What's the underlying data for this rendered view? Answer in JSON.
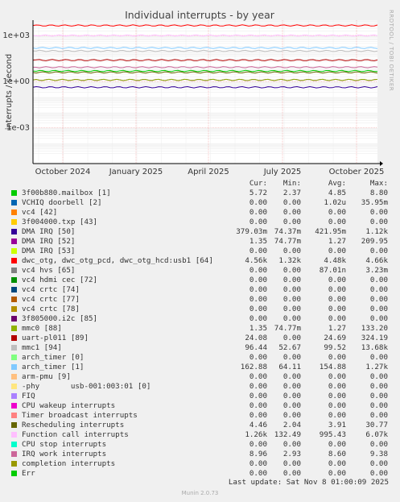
{
  "chart_data": {
    "type": "line",
    "title": "Individual interrupts - by year",
    "ylabel": "interrupts / second",
    "side_text": "RRDTOOL / TOBI OETIKER",
    "yscale": "log",
    "y_ticks": [
      "1e+03",
      "1e+00",
      "1e-03"
    ],
    "x_ticks": [
      "October 2024",
      "January 2025",
      "April 2025",
      "July 2025",
      "October 2025"
    ],
    "columns": [
      "Cur:",
      "Min:",
      "Avg:",
      "Max:"
    ],
    "series": [
      {
        "name": "3f00b880.mailbox [1]",
        "color": "#00cc00",
        "cur": "5.72",
        "min": "2.37",
        "avg": "4.85",
        "max": "8.80"
      },
      {
        "name": "VCHIQ doorbell [2]",
        "color": "#0066b3",
        "cur": "0.00",
        "min": "0.00",
        "avg": "1.02u",
        "max": "35.95m"
      },
      {
        "name": "vc4 [42]",
        "color": "#ff8000",
        "cur": "0.00",
        "min": "0.00",
        "avg": "0.00",
        "max": "0.00"
      },
      {
        "name": "3f004000.txp [43]",
        "color": "#ffcc00",
        "cur": "0.00",
        "min": "0.00",
        "avg": "0.00",
        "max": "0.00"
      },
      {
        "name": "DMA IRQ [50]",
        "color": "#330099",
        "cur": "379.03m",
        "min": "74.37m",
        "avg": "421.95m",
        "max": "1.12k"
      },
      {
        "name": "DMA IRQ [52]",
        "color": "#990099",
        "cur": "1.35",
        "min": "74.77m",
        "avg": "1.27",
        "max": "209.95"
      },
      {
        "name": "DMA IRQ [53]",
        "color": "#ccff00",
        "cur": "0.00",
        "min": "0.00",
        "avg": "0.00",
        "max": "0.00"
      },
      {
        "name": "dwc_otg, dwc_otg_pcd, dwc_otg_hcd:usb1 [64]",
        "color": "#ff0000",
        "cur": "4.56k",
        "min": "1.32k",
        "avg": "4.48k",
        "max": "4.66k"
      },
      {
        "name": "vc4 hvs [65]",
        "color": "#808080",
        "cur": "0.00",
        "min": "0.00",
        "avg": "87.01n",
        "max": "3.23m"
      },
      {
        "name": "vc4 hdmi cec [72]",
        "color": "#008f00",
        "cur": "0.00",
        "min": "0.00",
        "avg": "0.00",
        "max": "0.00"
      },
      {
        "name": "vc4 crtc [74]",
        "color": "#00487d",
        "cur": "0.00",
        "min": "0.00",
        "avg": "0.00",
        "max": "0.00"
      },
      {
        "name": "vc4 crtc [77]",
        "color": "#b35a00",
        "cur": "0.00",
        "min": "0.00",
        "avg": "0.00",
        "max": "0.00"
      },
      {
        "name": "vc4 crtc [78]",
        "color": "#b38f00",
        "cur": "0.00",
        "min": "0.00",
        "avg": "0.00",
        "max": "0.00"
      },
      {
        "name": "3f805000.i2c [85]",
        "color": "#6b006b",
        "cur": "0.00",
        "min": "0.00",
        "avg": "0.00",
        "max": "0.00"
      },
      {
        "name": "mmc0 [88]",
        "color": "#8fb300",
        "cur": "1.35",
        "min": "74.77m",
        "avg": "1.27",
        "max": "133.20"
      },
      {
        "name": "uart-pl011 [89]",
        "color": "#b30000",
        "cur": "24.08",
        "min": "0.00",
        "avg": "24.69",
        "max": "324.19"
      },
      {
        "name": "mmc1 [94]",
        "color": "#bebebe",
        "cur": "96.44",
        "min": "52.67",
        "avg": "99.52",
        "max": "13.68k"
      },
      {
        "name": "arch_timer [0]",
        "color": "#80ff80",
        "cur": "0.00",
        "min": "0.00",
        "avg": "0.00",
        "max": "0.00"
      },
      {
        "name": "arch_timer [1]",
        "color": "#80c9ff",
        "cur": "162.88",
        "min": "64.11",
        "avg": "154.88",
        "max": "1.27k"
      },
      {
        "name": "arm-pmu [9]",
        "color": "#ffc080",
        "cur": "0.00",
        "min": "0.00",
        "avg": "0.00",
        "max": "0.00"
      },
      {
        "name": "-phy       usb-001:003:01 [0]",
        "color": "#ffe680",
        "cur": "0.00",
        "min": "0.00",
        "avg": "0.00",
        "max": "0.00"
      },
      {
        "name": "FIQ",
        "color": "#aa80ff",
        "cur": "0.00",
        "min": "0.00",
        "avg": "0.00",
        "max": "0.00"
      },
      {
        "name": "CPU wakeup interrupts",
        "color": "#ee00cc",
        "cur": "0.00",
        "min": "0.00",
        "avg": "0.00",
        "max": "0.00"
      },
      {
        "name": "Timer broadcast interrupts",
        "color": "#ff8080",
        "cur": "0.00",
        "min": "0.00",
        "avg": "0.00",
        "max": "0.00"
      },
      {
        "name": "Rescheduling interrupts",
        "color": "#666600",
        "cur": "4.46",
        "min": "2.04",
        "avg": "3.91",
        "max": "30.77"
      },
      {
        "name": "Function call interrupts",
        "color": "#ffbfff",
        "cur": "1.26k",
        "min": "132.49",
        "avg": "995.43",
        "max": "6.07k"
      },
      {
        "name": "CPU stop interrupts",
        "color": "#00ffcc",
        "cur": "0.00",
        "min": "0.00",
        "avg": "0.00",
        "max": "0.00"
      },
      {
        "name": "IRQ work interrupts",
        "color": "#cc6699",
        "cur": "8.96",
        "min": "2.93",
        "avg": "8.60",
        "max": "9.38"
      },
      {
        "name": "completion interrupts",
        "color": "#999900",
        "cur": "0.00",
        "min": "0.00",
        "avg": "0.00",
        "max": "0.00"
      },
      {
        "name": "Err",
        "color": "#00cc00",
        "cur": "0.00",
        "min": "0.00",
        "avg": "0.00",
        "max": "0.00"
      }
    ]
  },
  "footer": {
    "last_update": "Last update: Sat Nov  8 01:00:09 2025",
    "version": "Munin 2.0.73"
  }
}
